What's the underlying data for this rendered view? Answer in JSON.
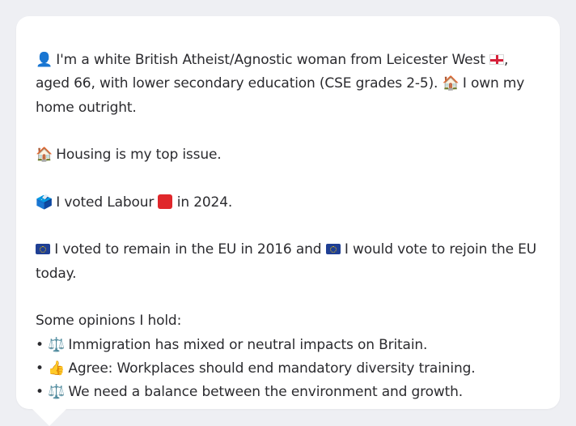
{
  "profile": {
    "intro": {
      "person_icon": "👤",
      "text_a": "I'm a white British Atheist/Agnostic woman from Leicester West",
      "flag_icon": "england-flag-icon",
      "text_b": ", aged 66, with lower secondary education (CSE grades 2-5).",
      "home_icon": "🏠",
      "text_c": "I own my home outright."
    },
    "issue": {
      "icon": "🏠",
      "text": "Housing is my top issue."
    },
    "vote": {
      "icon": "🗳️",
      "text_a": "I voted Labour",
      "party_color": "#e0272b",
      "text_b": "in 2024."
    },
    "eu": {
      "icon_name": "eu-flag-icon",
      "text_a": "I voted to remain in the EU in 2016 and",
      "text_b": "I would vote to rejoin the EU today."
    },
    "opinions": {
      "heading": "Some opinions I hold:",
      "items": [
        {
          "bullet": "•",
          "icon": "⚖️",
          "text": "Immigration has mixed or neutral impacts on Britain."
        },
        {
          "bullet": "•",
          "icon": "👍",
          "text": "Agree: Workplaces should end mandatory diversity training."
        },
        {
          "bullet": "•",
          "icon": "⚖️",
          "text": "We need a balance between the environment and growth."
        }
      ]
    }
  }
}
